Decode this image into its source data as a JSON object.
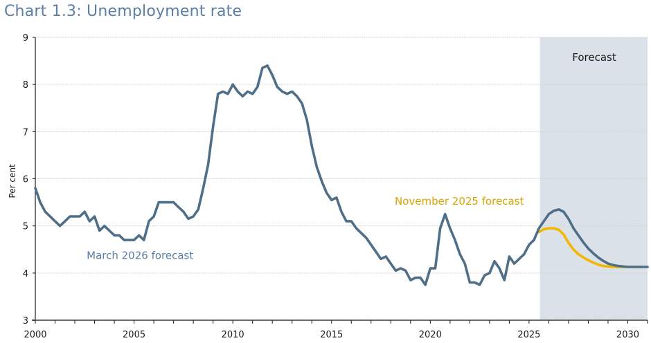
{
  "title": "Chart 1.3: Unemployment rate",
  "chart_data": {
    "type": "line",
    "title": "Chart 1.3: Unemployment rate",
    "xlabel": "",
    "ylabel": "Per cent",
    "xlim": [
      2000,
      2031
    ],
    "ylim": [
      3,
      9
    ],
    "yticks": [
      3,
      4,
      5,
      6,
      7,
      8,
      9
    ],
    "xticks": [
      2000,
      2005,
      2010,
      2015,
      2020,
      2025,
      2030
    ],
    "grid": "horizontal dotted",
    "shaded_region": {
      "label": "Forecast",
      "x_start": 2025.55,
      "x_end": 2031,
      "color": "#dbe1e8"
    },
    "series": [
      {
        "name": "March 2026 forecast",
        "color": "#4f6e88",
        "label_color": "#5a7fa6",
        "frequency": "quarterly",
        "x_start": 2000.0,
        "values": [
          5.8,
          5.5,
          5.3,
          5.2,
          5.1,
          5.0,
          5.1,
          5.2,
          5.2,
          5.2,
          5.3,
          5.1,
          5.2,
          4.9,
          5.0,
          4.9,
          4.8,
          4.8,
          4.7,
          4.7,
          4.7,
          4.8,
          4.7,
          5.1,
          5.2,
          5.5,
          5.5,
          5.5,
          5.5,
          5.4,
          5.3,
          5.15,
          5.2,
          5.35,
          5.8,
          6.3,
          7.1,
          7.8,
          7.85,
          7.8,
          8.0,
          7.85,
          7.75,
          7.85,
          7.8,
          7.95,
          8.35,
          8.4,
          8.2,
          7.95,
          7.85,
          7.8,
          7.85,
          7.75,
          7.6,
          7.25,
          6.7,
          6.25,
          5.95,
          5.7,
          5.55,
          5.6,
          5.3,
          5.1,
          5.1,
          4.95,
          4.85,
          4.75,
          4.6,
          4.45,
          4.3,
          4.35,
          4.2,
          4.05,
          4.1,
          4.05,
          3.85,
          3.9,
          3.9,
          3.75,
          4.1,
          4.1,
          4.95,
          5.25,
          4.95,
          4.7,
          4.4,
          4.2,
          3.8,
          3.8,
          3.75,
          3.95,
          4.0,
          4.25,
          4.1,
          3.85,
          4.35,
          4.2,
          4.3,
          4.4,
          4.6,
          4.7,
          4.95,
          5.1,
          5.25,
          5.32,
          5.35,
          5.3,
          5.15,
          4.95,
          4.8,
          4.65,
          4.52,
          4.42,
          4.33,
          4.26,
          4.2,
          4.17,
          4.15,
          4.14,
          4.13,
          4.13,
          4.13,
          4.13,
          4.13
        ]
      },
      {
        "name": "November 2025 forecast",
        "color": "#f2b800",
        "label_color": "#d9a400",
        "frequency": "quarterly",
        "x_start": 2025.5,
        "values": [
          4.87,
          4.93,
          4.95,
          4.95,
          4.92,
          4.82,
          4.64,
          4.5,
          4.4,
          4.33,
          4.27,
          4.22,
          4.18,
          4.15,
          4.14,
          4.13,
          4.13,
          4.13,
          4.13,
          4.13,
          4.13,
          4.13
        ]
      }
    ],
    "annotations": [
      {
        "text": "March 2026 forecast",
        "x": 2002.6,
        "y": 4.3
      },
      {
        "text": "November 2025 forecast",
        "x": 2018.2,
        "y": 5.45
      },
      {
        "text": "Forecast",
        "x": 2028.3,
        "y": 8.5
      }
    ]
  }
}
